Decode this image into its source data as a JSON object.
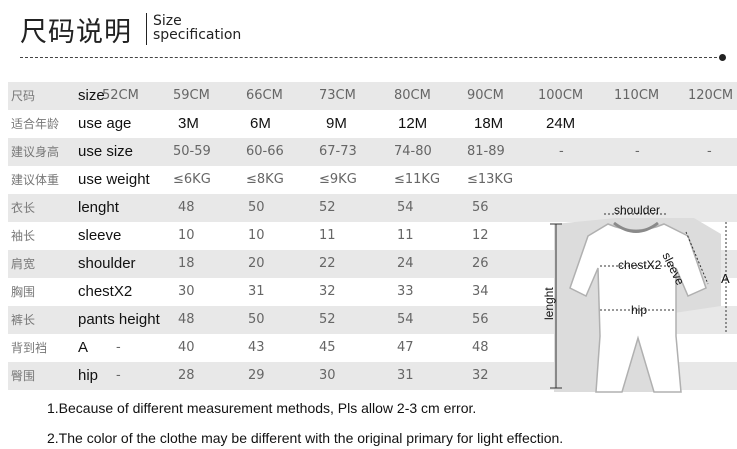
{
  "header": {
    "title_cn": "尺码说明",
    "title_en_line1": "Size",
    "title_en_line2": "specification"
  },
  "table": {
    "rows": [
      {
        "cn": "尺码",
        "en": "size",
        "values": [
          "52CM",
          "59CM",
          "66CM",
          "73CM",
          "80CM",
          "90CM",
          "100CM",
          "110CM",
          "120CM"
        ]
      },
      {
        "cn": "适合年龄",
        "en": "use age",
        "values": [
          "3M",
          "6M",
          "9M",
          "12M",
          "18M",
          "24M",
          "",
          "",
          ""
        ]
      },
      {
        "cn": "建议身高",
        "en": "use size",
        "values": [
          "",
          "50-59",
          "60-66",
          "67-73",
          "74-80",
          "81-89",
          "-",
          "-",
          "-"
        ]
      },
      {
        "cn": "建议体重",
        "en": "use weight",
        "values": [
          "",
          "≤6KG",
          "≤8KG",
          "≤9KG",
          "≤11KG",
          "≤13KG",
          "",
          "",
          ""
        ]
      },
      {
        "cn": "衣长",
        "en": "lenght",
        "values": [
          "",
          "48",
          "50",
          "52",
          "54",
          "56",
          "",
          "",
          ""
        ]
      },
      {
        "cn": "袖长",
        "en": "sleeve",
        "values": [
          "",
          "10",
          "10",
          "11",
          "11",
          "12",
          "",
          "",
          ""
        ]
      },
      {
        "cn": "肩宽",
        "en": "shoulder",
        "values": [
          "",
          "18",
          "20",
          "22",
          "24",
          "26",
          "",
          "",
          ""
        ]
      },
      {
        "cn": "胸围",
        "en": "chestX2",
        "values": [
          "",
          "30",
          "31",
          "32",
          "33",
          "34",
          "",
          "",
          ""
        ]
      },
      {
        "cn": "裤长",
        "en": "pants height",
        "values": [
          "",
          "48",
          "50",
          "52",
          "54",
          "56",
          "",
          "",
          ""
        ]
      },
      {
        "cn": "背到裆",
        "en": "A",
        "values": [
          "-",
          "40",
          "43",
          "45",
          "47",
          "48",
          "",
          "",
          ""
        ]
      },
      {
        "cn": "臀围",
        "en": "hip",
        "values": [
          "-",
          "28",
          "29",
          "30",
          "31",
          "32",
          "",
          "",
          ""
        ]
      }
    ]
  },
  "diagram": {
    "shoulder": "shoulder",
    "sleeve": "sleeve",
    "chest": "chestX2",
    "hip": "hip",
    "length": "lenght",
    "a": "A"
  },
  "notes": [
    "1.Because of different measurement methods, Pls allow 2-3 cm error.",
    "2.The color of the clothe may be different with the original primary for light effection."
  ]
}
